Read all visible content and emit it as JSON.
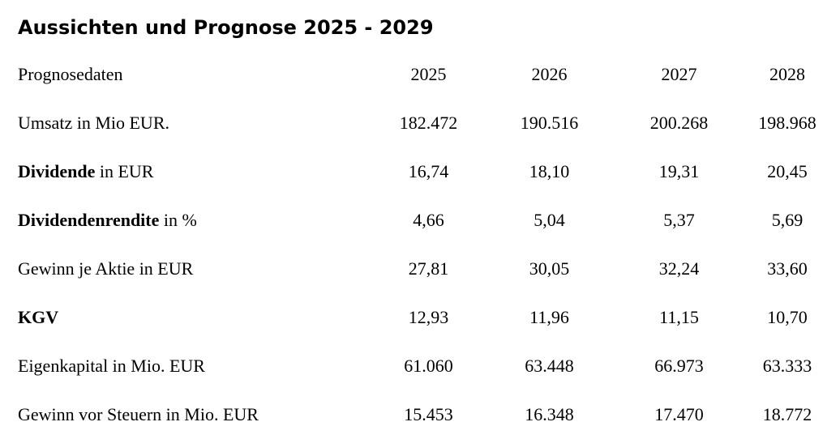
{
  "title": "Aussichten und Prognose 2025 - 2029",
  "table": {
    "header": {
      "label": "Prognosedaten",
      "years": [
        "2025",
        "2026",
        "2027",
        "2028"
      ]
    },
    "rows": [
      {
        "label_bold": "",
        "label": "Umsatz in Mio EUR.",
        "values": [
          "182.472",
          "190.516",
          "200.268",
          "198.968"
        ]
      },
      {
        "label_bold": "Dividende",
        "label": " in EUR",
        "values": [
          "16,74",
          "18,10",
          "19,31",
          "20,45"
        ]
      },
      {
        "label_bold": "Dividendenrendite",
        "label": " in %",
        "values": [
          "4,66",
          "5,04",
          "5,37",
          "5,69"
        ]
      },
      {
        "label_bold": "",
        "label": "Gewinn je Aktie in EUR",
        "values": [
          "27,81",
          "30,05",
          "32,24",
          "33,60"
        ]
      },
      {
        "label_bold": "KGV",
        "label": "",
        "values": [
          "12,93",
          "11,96",
          "11,15",
          "10,70"
        ]
      },
      {
        "label_bold": "",
        "label": "Eigenkapital in Mio. EUR",
        "values": [
          "61.060",
          "63.448",
          "66.973",
          "63.333"
        ]
      },
      {
        "label_bold": "",
        "label": "Gewinn vor Steuern in Mio. EUR",
        "values": [
          "15.453",
          "16.348",
          "17.470",
          "18.772"
        ]
      }
    ]
  }
}
